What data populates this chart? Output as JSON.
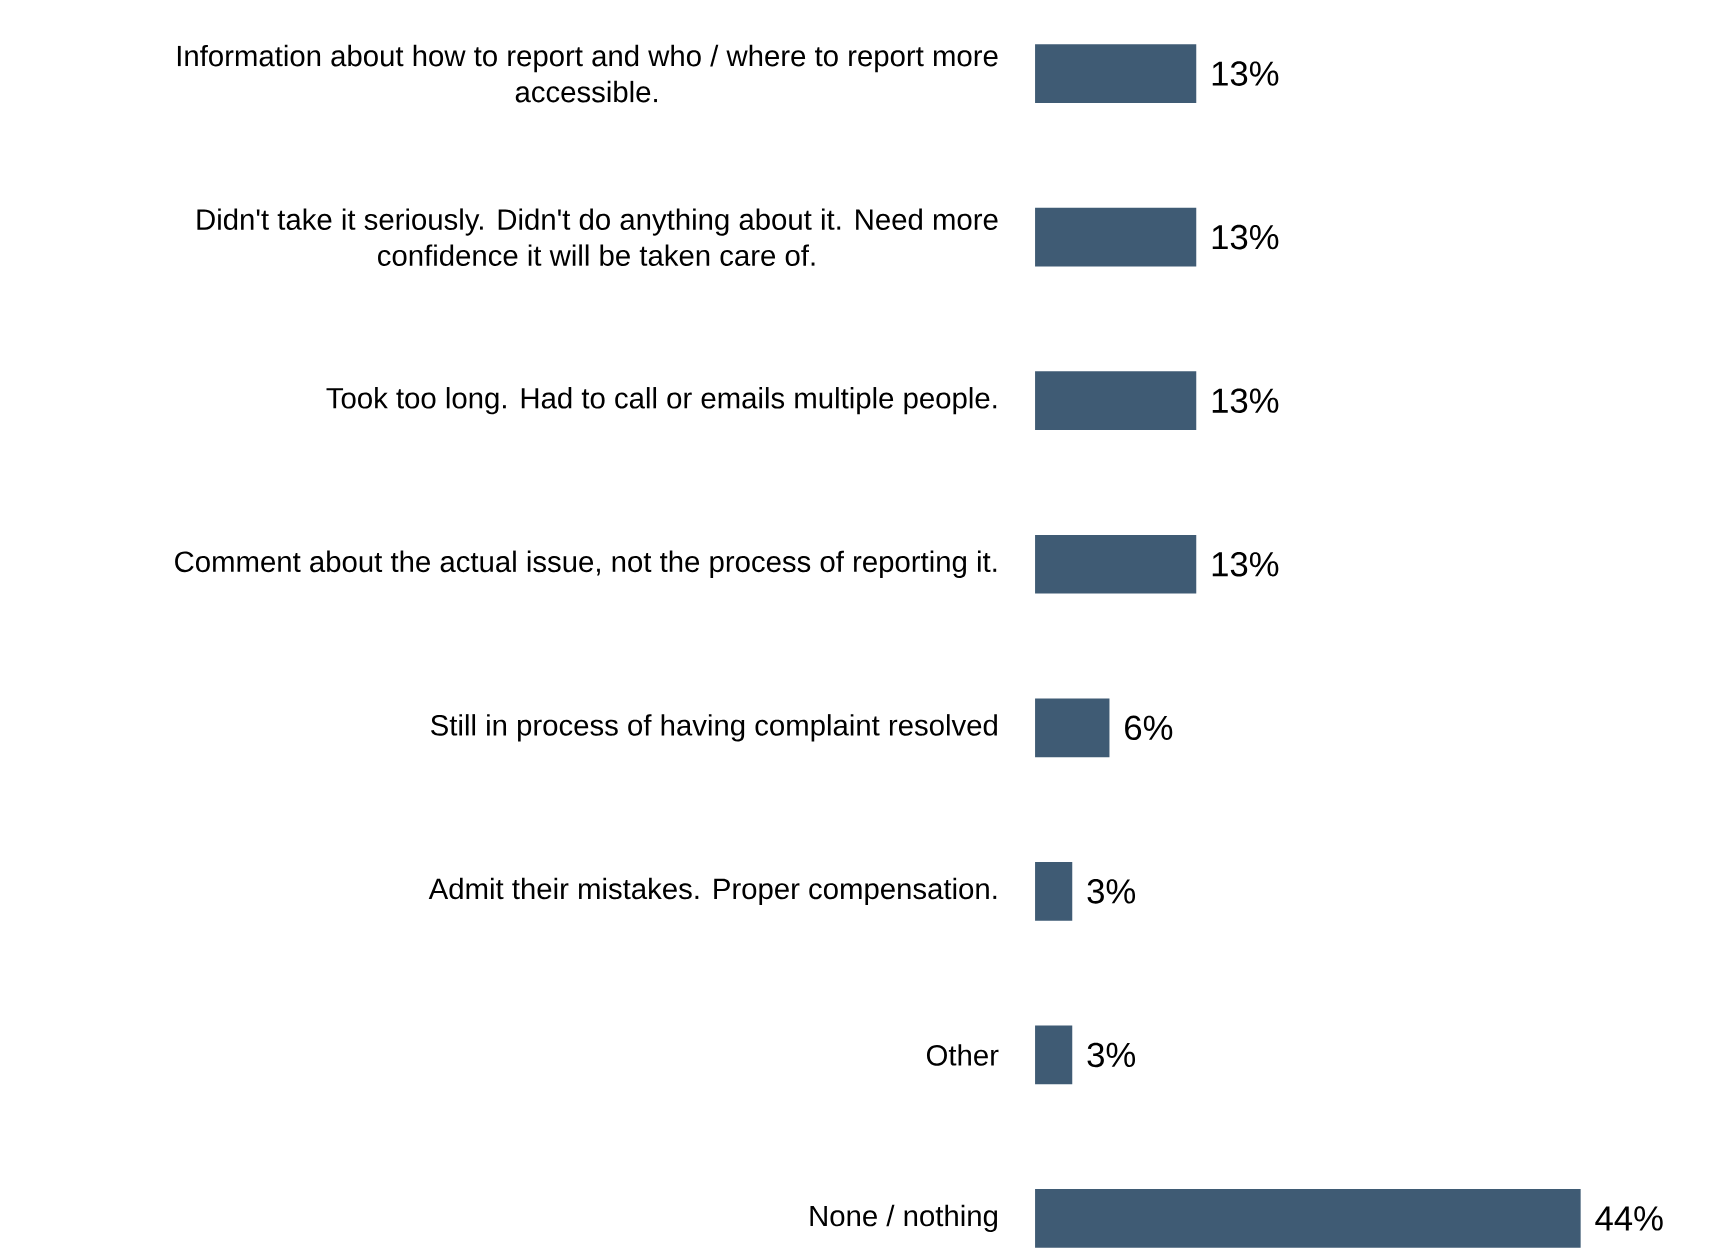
{
  "chart_data": {
    "type": "bar",
    "orientation": "horizontal",
    "categories": [
      "Information about how to report and who / where to report more accessible.",
      "Didn't take it seriously. Didn't do anything about it. Need more confidence it will be taken care of.",
      "Took too long. Had to call or emails multiple people.",
      "Comment about the actual issue, not the process of reporting it.",
      "Still in process of having complaint resolved",
      "Admit their mistakes. Proper compensation.",
      "Other",
      "None / nothing"
    ],
    "values": [
      13,
      13,
      13,
      13,
      6,
      3,
      3,
      44
    ],
    "value_labels": [
      "13%",
      "13%",
      "13%",
      "13%",
      "6%",
      "3%",
      "3%",
      "44%"
    ],
    "color": "#3f5b74"
  }
}
